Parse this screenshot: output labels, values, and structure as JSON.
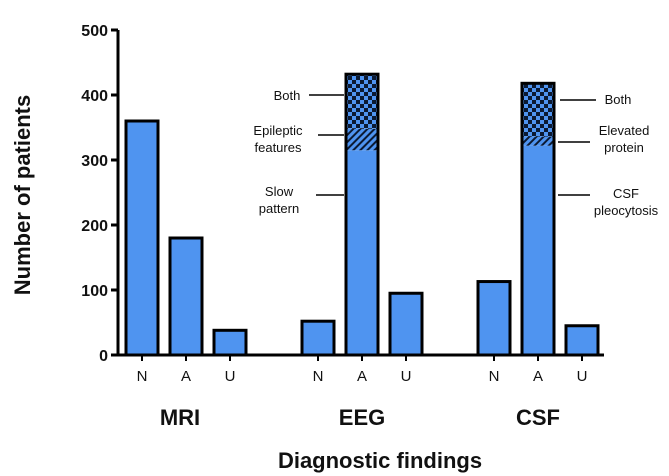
{
  "chart_data": {
    "type": "bar",
    "stacked_segments": true,
    "title": "",
    "xlabel": "Diagnostic findings",
    "ylabel": "Number of patients",
    "ylim": [
      0,
      500
    ],
    "yticks": [
      0,
      100,
      200,
      300,
      400,
      500
    ],
    "grid": false,
    "legend": "none",
    "bar_color": "#4f94f0",
    "edge_color": "#000000",
    "groups": [
      {
        "name": "MRI",
        "bars": [
          {
            "category": "N",
            "value": 360
          },
          {
            "category": "A",
            "value": 180
          },
          {
            "category": "U",
            "value": 38
          }
        ]
      },
      {
        "name": "EEG",
        "bars": [
          {
            "category": "N",
            "value": 52
          },
          {
            "category": "A",
            "value": 432,
            "segments": [
              {
                "name": "Slow pattern",
                "label_lines": [
                  "Slow",
                  "pattern"
                ],
                "value": 315,
                "pattern": "solid"
              },
              {
                "name": "Epileptic features",
                "label_lines": [
                  "Epileptic",
                  "features"
                ],
                "value": 33,
                "pattern": "hatch"
              },
              {
                "name": "Both",
                "label_lines": [
                  "Both"
                ],
                "value": 84,
                "pattern": "checker"
              }
            ]
          },
          {
            "category": "U",
            "value": 95
          }
        ]
      },
      {
        "name": "CSF",
        "bars": [
          {
            "category": "N",
            "value": 113
          },
          {
            "category": "A",
            "value": 418,
            "segments": [
              {
                "name": "CSF pleocytosis",
                "label_lines": [
                  "CSF",
                  "pleocytosis"
                ],
                "value": 322,
                "pattern": "solid"
              },
              {
                "name": "Elevated protein",
                "label_lines": [
                  "Elevated",
                  "protein"
                ],
                "value": 14,
                "pattern": "hatch"
              },
              {
                "name": "Both",
                "label_lines": [
                  "Both"
                ],
                "value": 82,
                "pattern": "checker"
              }
            ]
          },
          {
            "category": "U",
            "value": 45
          }
        ]
      }
    ]
  }
}
